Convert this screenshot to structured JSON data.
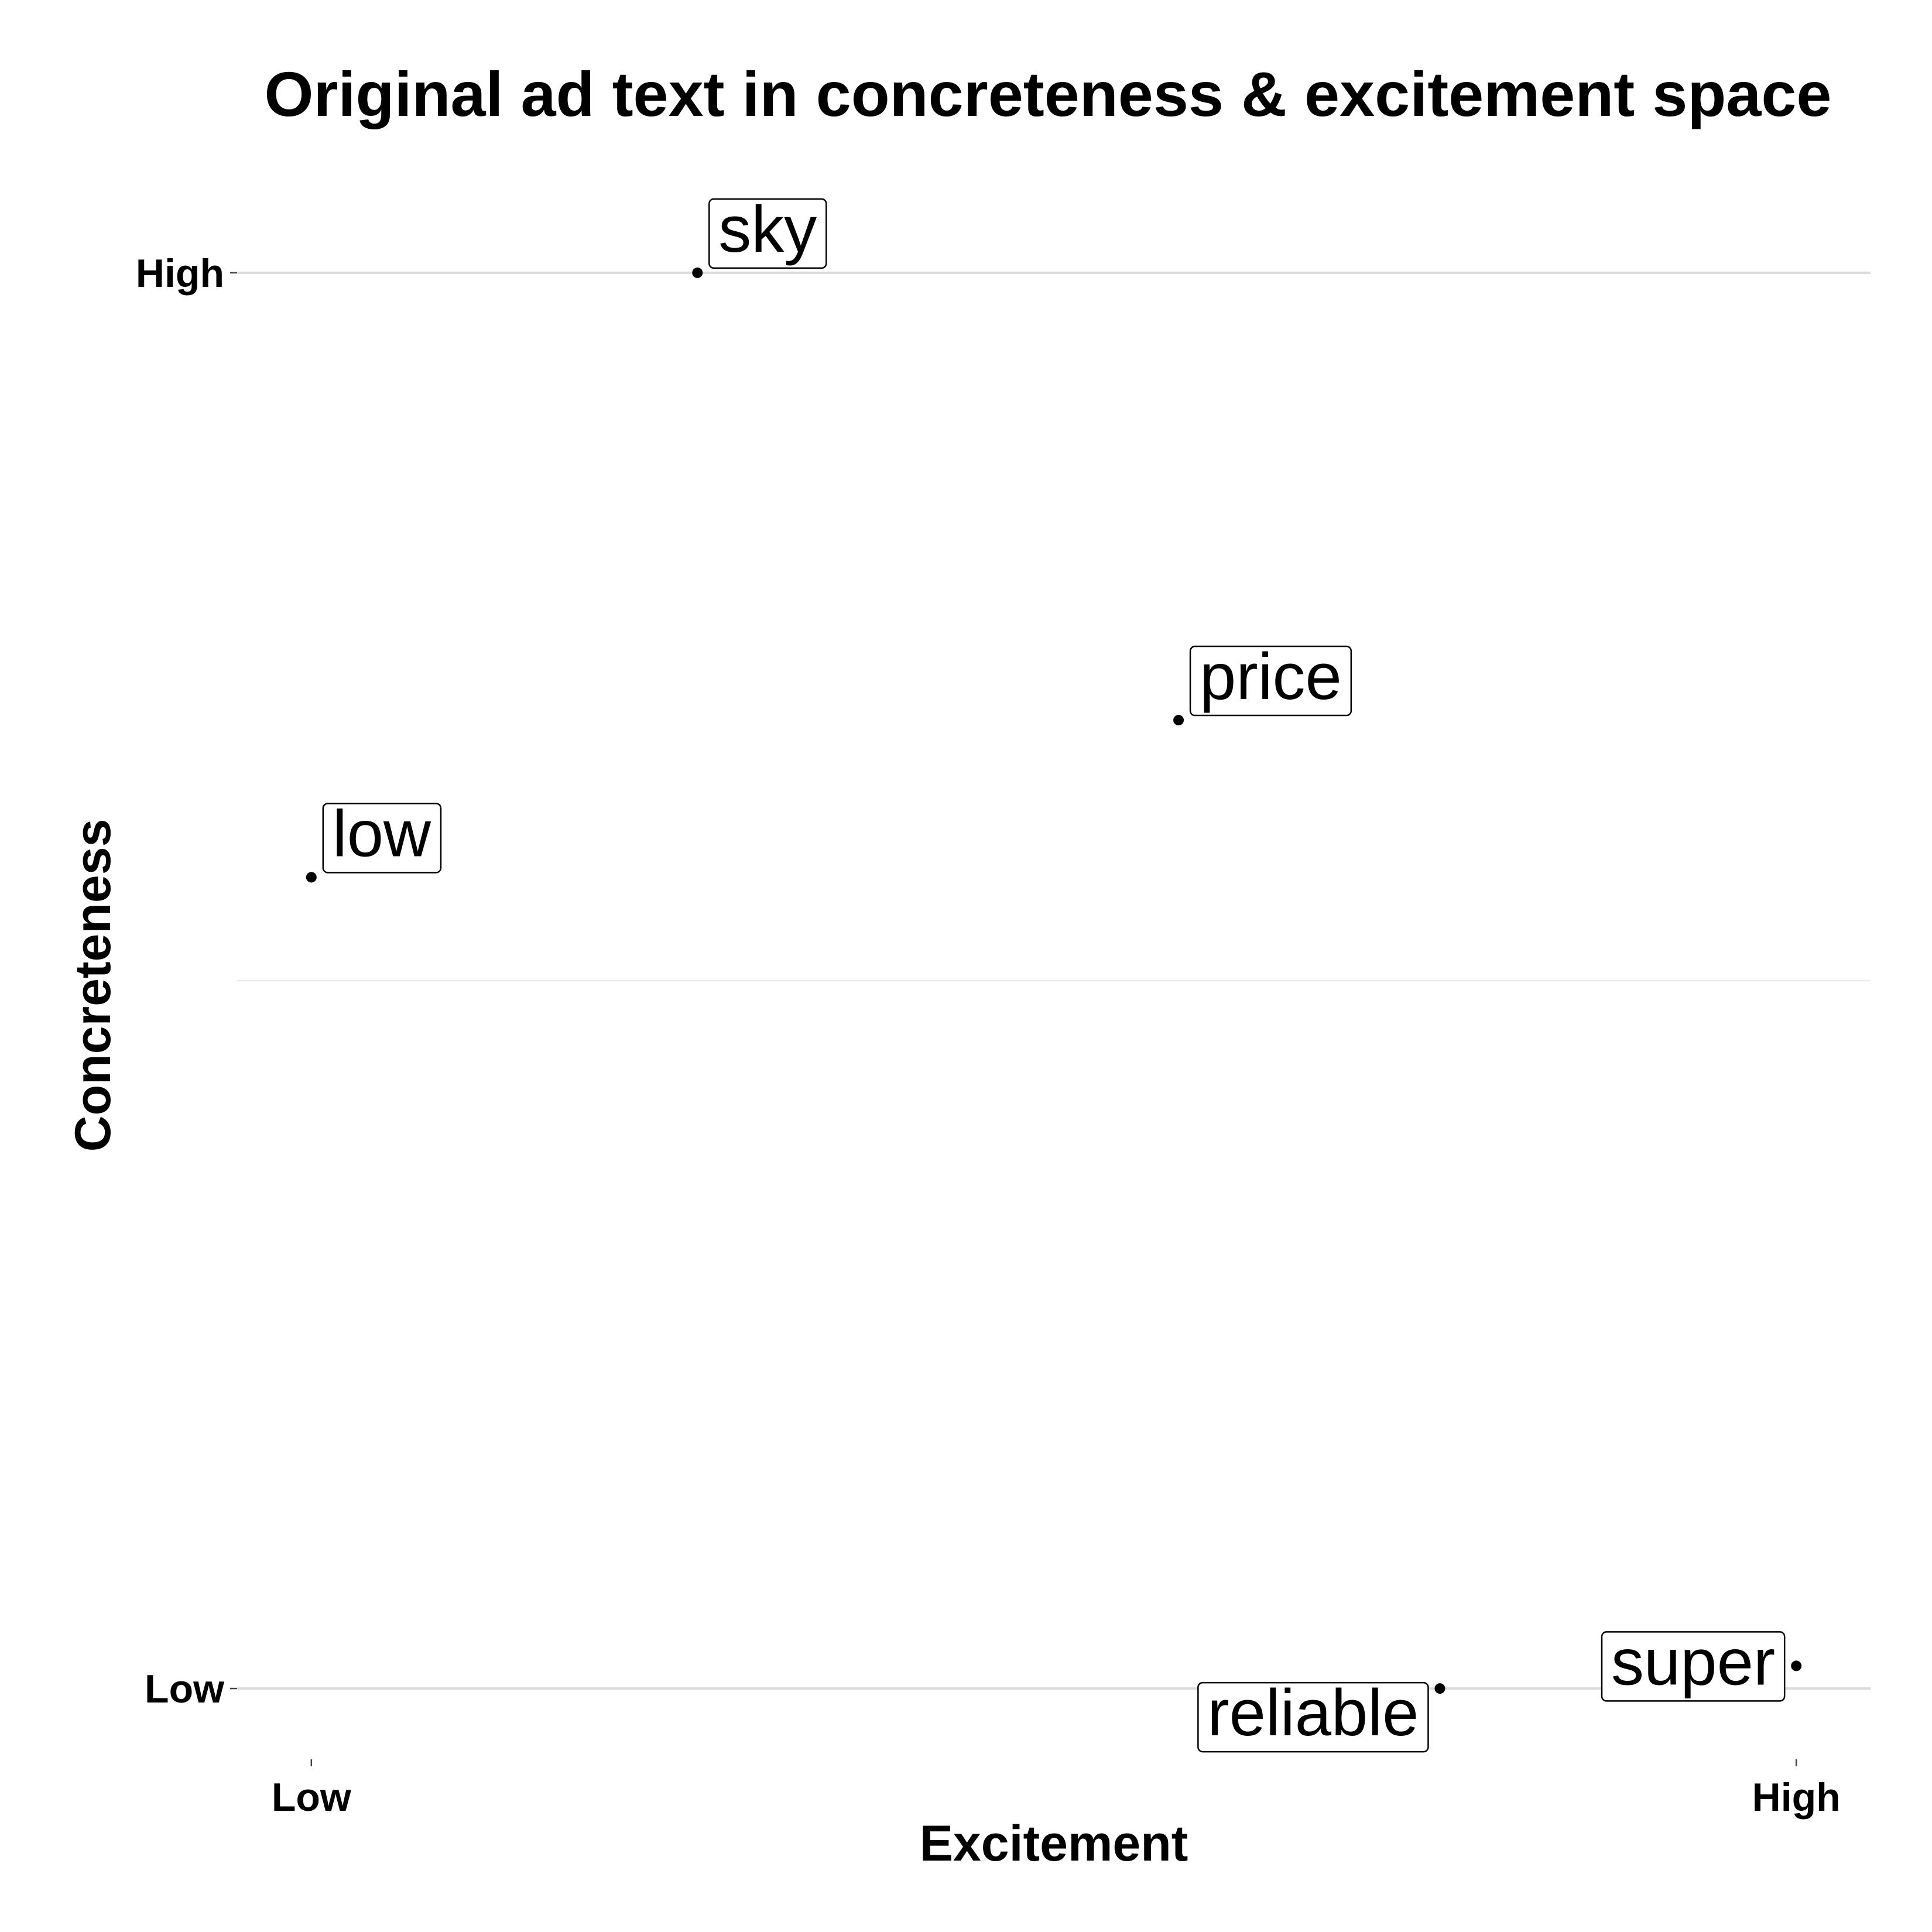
{
  "chart_data": {
    "type": "scatter",
    "title": "Original ad text in concreteness & excitement space",
    "xlabel": "Excitement",
    "ylabel": "Concreteness",
    "xlim": [
      -0.05,
      1.05
    ],
    "ylim": [
      -0.05,
      1.05
    ],
    "x_ticks": [
      {
        "value": 0,
        "label": "Low"
      },
      {
        "value": 1,
        "label": "High"
      }
    ],
    "y_ticks": [
      {
        "value": 0,
        "label": "Low"
      },
      {
        "value": 1,
        "label": "High"
      }
    ],
    "y_minor_grid": [
      0.5
    ],
    "grid": true,
    "legend": "none",
    "points": [
      {
        "label": "sky",
        "x": 0.26,
        "y": 1.0,
        "label_side": "upper-right"
      },
      {
        "label": "price",
        "x": 0.584,
        "y": 0.684,
        "label_side": "upper-right"
      },
      {
        "label": "low",
        "x": 0.0,
        "y": 0.573,
        "label_side": "upper-right"
      },
      {
        "label": "super",
        "x": 1.0,
        "y": 0.016,
        "label_side": "upper-left"
      },
      {
        "label": "reliable",
        "x": 0.76,
        "y": 0.0,
        "label_side": "lower-left"
      }
    ],
    "point_color": "#000000"
  }
}
